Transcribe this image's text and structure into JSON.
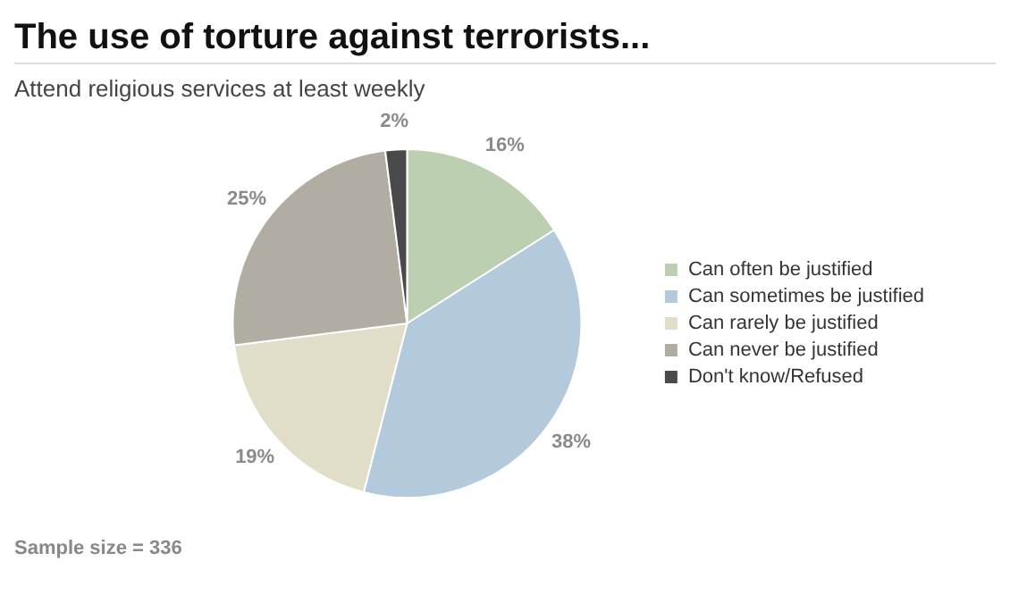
{
  "chart_data": {
    "type": "pie",
    "title": "The use of torture against terrorists...",
    "subtitle": "Attend religious services at least weekly",
    "categories": [
      "Can often be justified",
      "Can sometimes be justified",
      "Can rarely be justified",
      "Can never be justified",
      "Don't know/Refused"
    ],
    "values": [
      16,
      38,
      19,
      25,
      2
    ],
    "colors": [
      "#bccfb0",
      "#b3c9dc",
      "#e0dec9",
      "#b1ada3",
      "#4a4a4a"
    ],
    "value_labels": [
      "16%",
      "38%",
      "19%",
      "25%",
      "2%"
    ],
    "legend": "right",
    "annotations": [
      "Sample size = 336"
    ]
  }
}
